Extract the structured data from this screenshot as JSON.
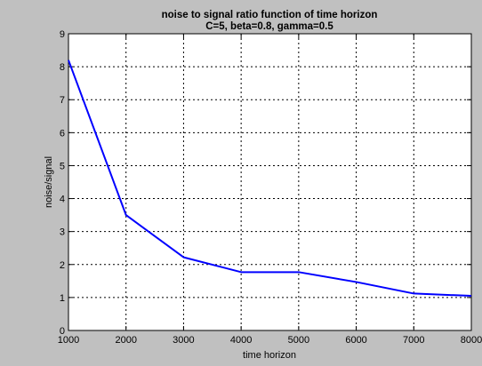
{
  "chart_data": {
    "type": "line",
    "title": "noise to signal ratio function of time horizon",
    "subtitle": "C=5, beta=0.8, gamma=0.5",
    "xlabel": "time horizon",
    "ylabel": "noise/signal",
    "xlim": [
      1000,
      8000
    ],
    "ylim": [
      0,
      9
    ],
    "xticks": [
      1000,
      2000,
      3000,
      4000,
      5000,
      6000,
      7000,
      8000
    ],
    "yticks": [
      0,
      1,
      2,
      3,
      4,
      5,
      6,
      7,
      8,
      9
    ],
    "grid": true,
    "x": [
      1000,
      2000,
      3000,
      4000,
      5000,
      6000,
      7000,
      8000
    ],
    "series": [
      {
        "values": [
          8.2,
          3.5,
          2.22,
          1.77,
          1.77,
          1.47,
          1.12,
          1.05
        ],
        "color": "#0000ff"
      }
    ],
    "colors": {
      "figure_bg": "#c0c0c0",
      "axes_bg": "#ffffff"
    }
  }
}
